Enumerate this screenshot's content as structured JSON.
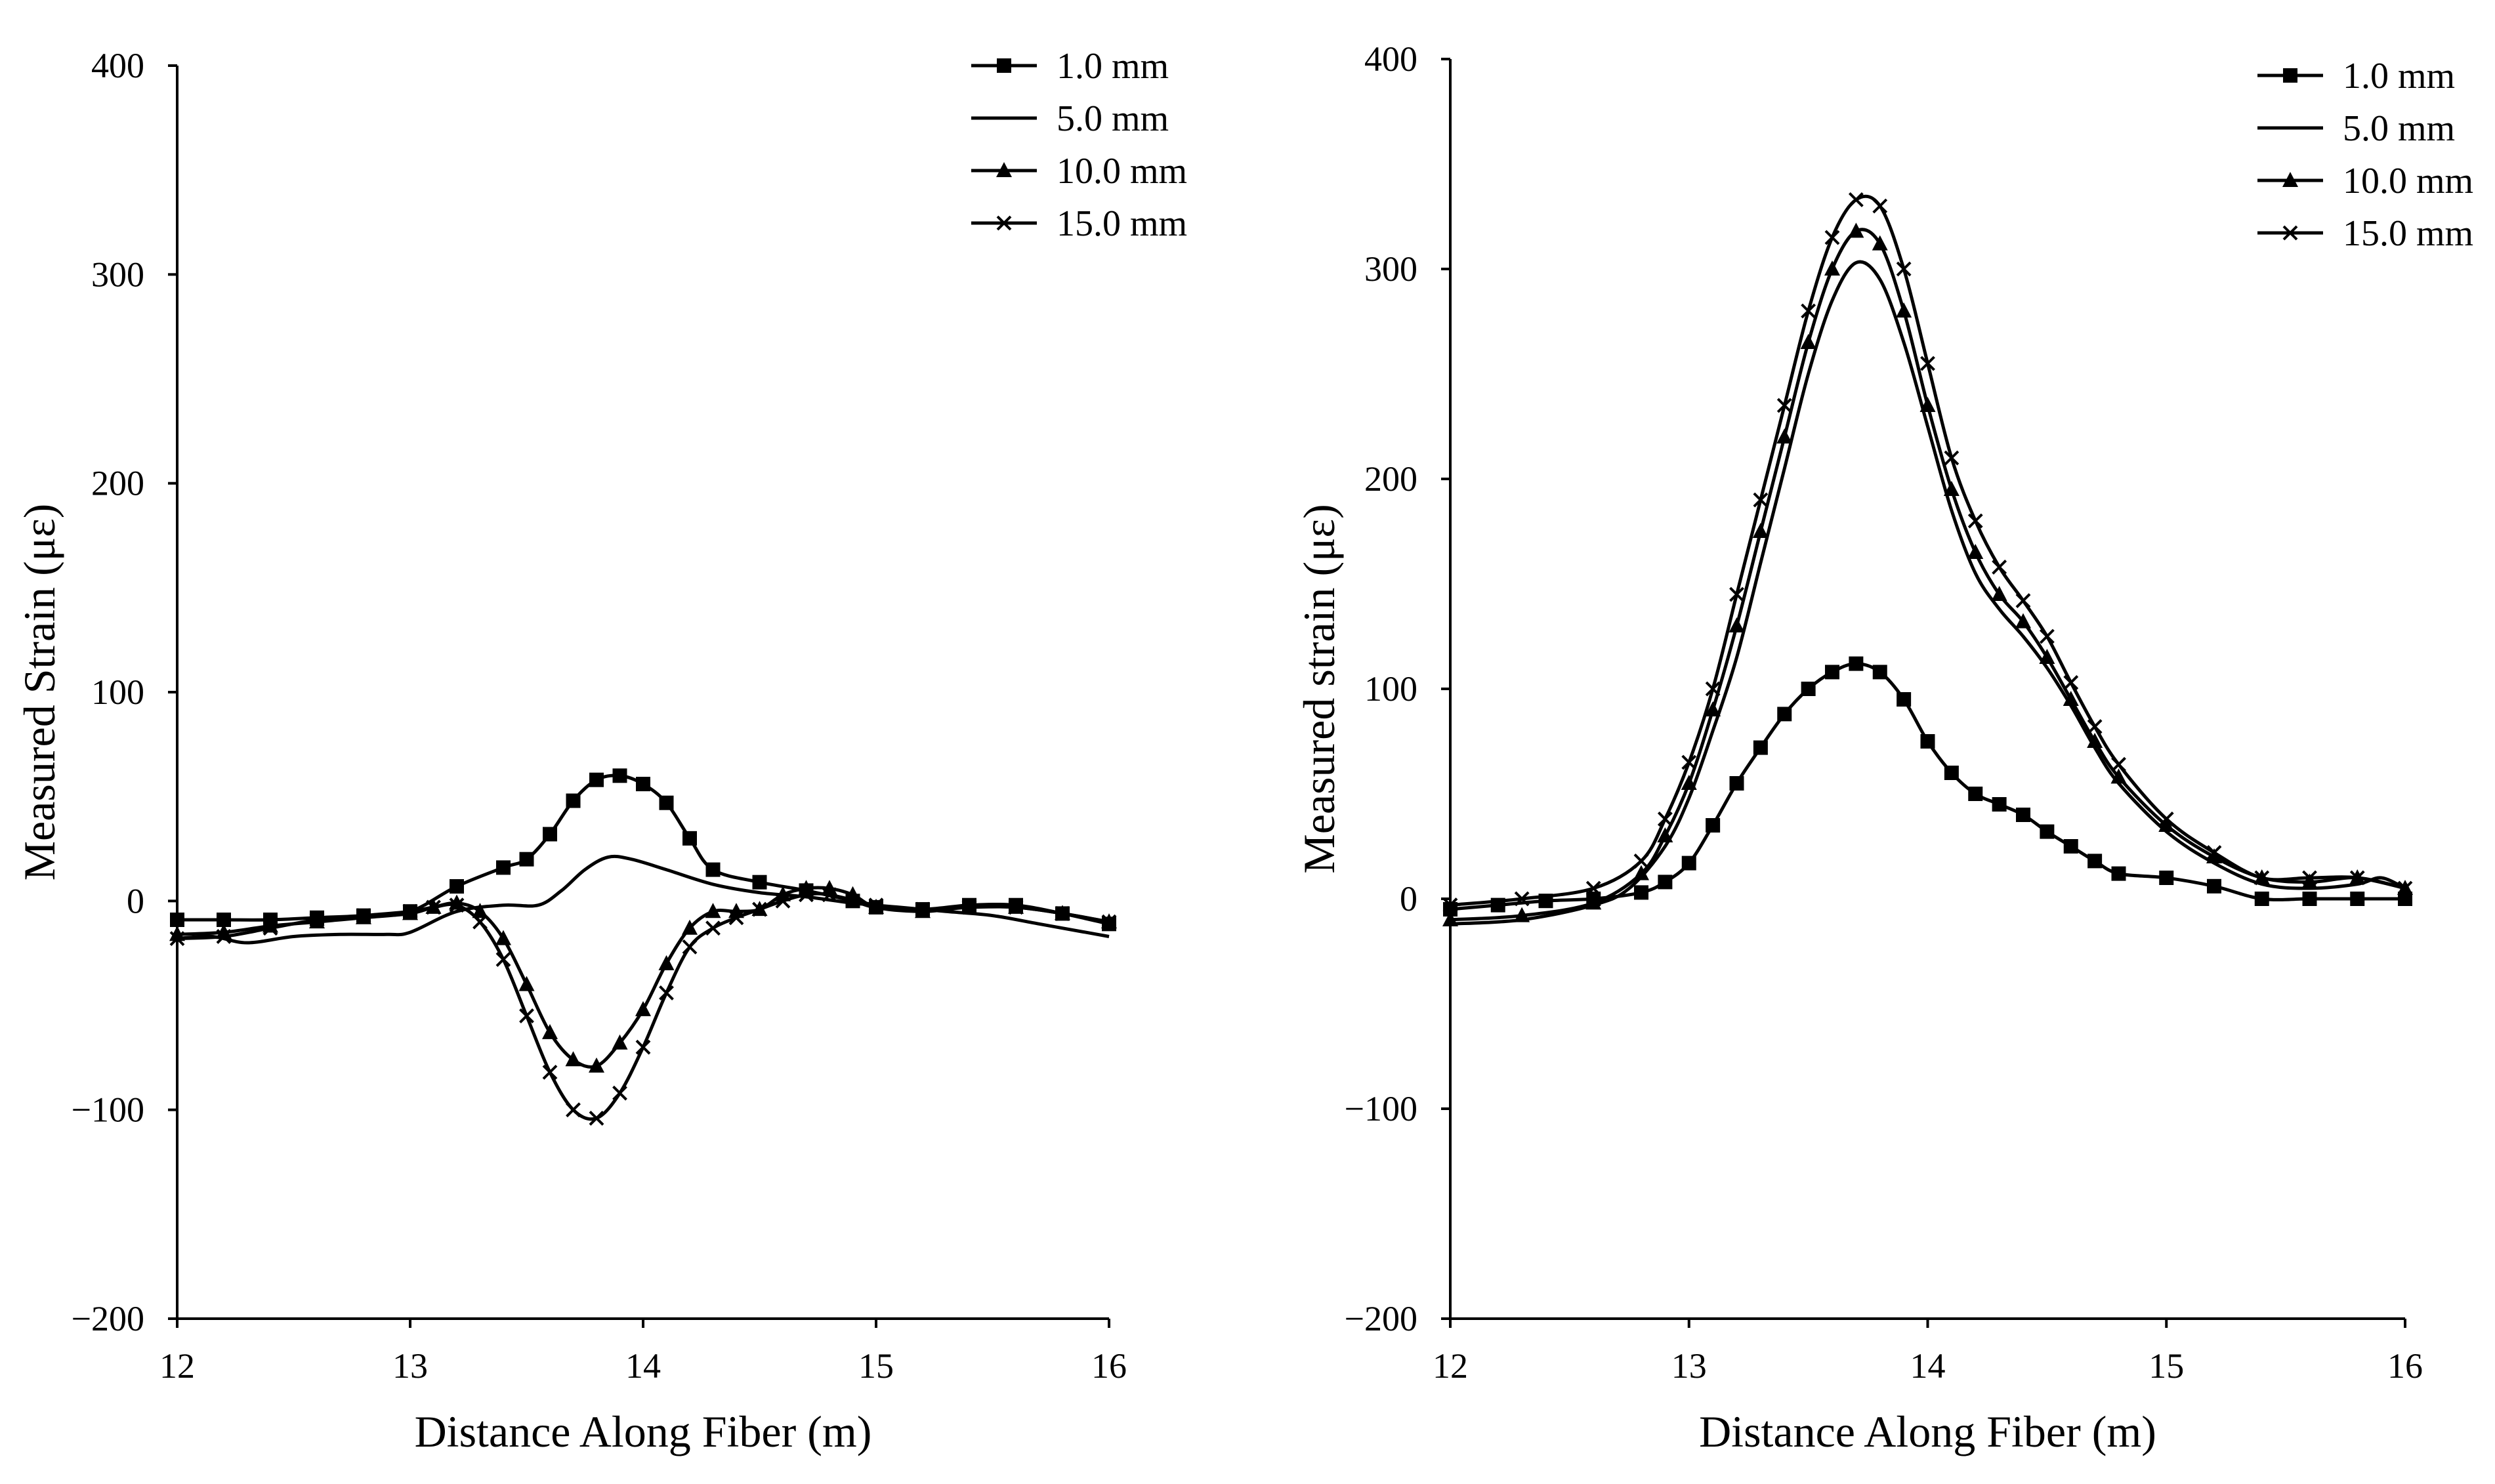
{
  "chart_data": [
    {
      "type": "line",
      "xlabel": "Distance Along Fiber (m)",
      "ylabel": "Measured Strain (με)",
      "xlim": [
        12,
        16
      ],
      "ylim": [
        -200,
        400
      ],
      "xticks": [
        12,
        13,
        14,
        15,
        16
      ],
      "yticks": [
        -200,
        -100,
        0,
        100,
        200,
        300,
        400
      ],
      "xtick_labels": [
        "12",
        "13",
        "14",
        "15",
        "16"
      ],
      "ytick_labels": [
        "−200",
        "−100",
        "0",
        "100",
        "200",
        "300",
        "400"
      ],
      "grid": false,
      "legend_position": "top-right",
      "series": [
        {
          "name": "1.0 mm",
          "marker": "square",
          "x": [
            12.0,
            12.2,
            12.4,
            12.6,
            12.8,
            13.0,
            13.2,
            13.4,
            13.5,
            13.6,
            13.7,
            13.8,
            13.9,
            14.0,
            14.1,
            14.2,
            14.3,
            14.5,
            14.7,
            14.9,
            15.0,
            15.2,
            15.4,
            15.6,
            15.8,
            16.0
          ],
          "y": [
            -9,
            -9,
            -9,
            -8,
            -7,
            -5,
            7,
            16,
            20,
            32,
            48,
            58,
            60,
            56,
            47,
            30,
            15,
            9,
            5,
            0,
            -3,
            -4,
            -2,
            -2,
            -6,
            -11
          ]
        },
        {
          "name": "5.0 mm",
          "marker": "none",
          "x": [
            12.0,
            12.15,
            12.3,
            12.5,
            12.7,
            12.9,
            13.0,
            13.2,
            13.4,
            13.55,
            13.65,
            13.75,
            13.85,
            13.95,
            14.1,
            14.3,
            14.5,
            14.7,
            14.9,
            15.1,
            15.3,
            15.5,
            15.7,
            15.9,
            16.0
          ],
          "y": [
            -18,
            -17,
            -20,
            -17,
            -16,
            -16,
            -15,
            -5,
            -2,
            -2,
            5,
            15,
            21,
            20,
            15,
            8,
            4,
            2,
            -1,
            -3,
            -5,
            -7,
            -11,
            -15,
            -17
          ]
        },
        {
          "name": "10.0 mm",
          "marker": "triangle",
          "x": [
            12.0,
            12.2,
            12.4,
            12.6,
            12.8,
            13.0,
            13.1,
            13.2,
            13.3,
            13.4,
            13.5,
            13.6,
            13.7,
            13.8,
            13.9,
            14.0,
            14.1,
            14.2,
            14.3,
            14.4,
            14.5,
            14.6,
            14.7,
            14.8,
            14.9,
            15.0,
            15.2,
            15.4,
            15.6,
            15.8,
            16.0
          ],
          "y": [
            -16,
            -15,
            -12,
            -10,
            -8,
            -6,
            -3,
            -1,
            -5,
            -18,
            -40,
            -63,
            -76,
            -79,
            -68,
            -52,
            -30,
            -13,
            -5,
            -5,
            -4,
            3,
            6,
            6,
            3,
            -3,
            -5,
            -3,
            -3,
            -6,
            -10
          ]
        },
        {
          "name": "15.0 mm",
          "marker": "x",
          "x": [
            12.0,
            12.2,
            12.4,
            12.6,
            12.8,
            13.0,
            13.1,
            13.2,
            13.3,
            13.4,
            13.5,
            13.6,
            13.7,
            13.8,
            13.9,
            14.0,
            14.1,
            14.2,
            14.3,
            14.4,
            14.5,
            14.6,
            14.7,
            14.8,
            15.0,
            15.2,
            15.4,
            15.6,
            15.8,
            16.0
          ],
          "y": [
            -18,
            -17,
            -13,
            -9,
            -7,
            -5,
            -3,
            -2,
            -10,
            -28,
            -55,
            -82,
            -100,
            -104,
            -92,
            -70,
            -44,
            -22,
            -13,
            -8,
            -4,
            0,
            3,
            3,
            -2,
            -4,
            -3,
            -3,
            -6,
            -10
          ]
        }
      ]
    },
    {
      "type": "line",
      "xlabel": "Distance Along Fiber (m)",
      "ylabel": "Measured strain (με)",
      "xlim": [
        12,
        16
      ],
      "ylim": [
        -200,
        400
      ],
      "xticks": [
        12,
        13,
        14,
        15,
        16
      ],
      "yticks": [
        -200,
        -100,
        0,
        100,
        200,
        300,
        400
      ],
      "xtick_labels": [
        "12",
        "13",
        "14",
        "15",
        "16"
      ],
      "ytick_labels": [
        "−200",
        "−100",
        "0",
        "100",
        "200",
        "300",
        "400"
      ],
      "grid": false,
      "legend_position": "top-right",
      "series": [
        {
          "name": "1.0 mm",
          "marker": "square",
          "x": [
            12.0,
            12.2,
            12.4,
            12.6,
            12.8,
            12.9,
            13.0,
            13.1,
            13.2,
            13.3,
            13.4,
            13.5,
            13.6,
            13.7,
            13.8,
            13.9,
            14.0,
            14.1,
            14.2,
            14.3,
            14.4,
            14.5,
            14.6,
            14.7,
            14.8,
            15.0,
            15.2,
            15.4,
            15.6,
            15.8,
            16.0
          ],
          "y": [
            -5,
            -3,
            -1,
            0,
            3,
            8,
            17,
            35,
            55,
            72,
            88,
            100,
            108,
            112,
            108,
            95,
            75,
            60,
            50,
            45,
            40,
            32,
            25,
            18,
            12,
            10,
            6,
            0,
            0,
            0,
            0
          ]
        },
        {
          "name": "5.0 mm",
          "marker": "none",
          "x": [
            12.0,
            12.3,
            12.6,
            12.75,
            12.9,
            13.0,
            13.1,
            13.2,
            13.3,
            13.4,
            13.5,
            13.6,
            13.7,
            13.8,
            13.9,
            14.0,
            14.1,
            14.2,
            14.3,
            14.4,
            14.5,
            14.6,
            14.7,
            14.8,
            15.0,
            15.2,
            15.4,
            15.6,
            15.8,
            15.9,
            16.0
          ],
          "y": [
            -12,
            -10,
            -3,
            5,
            25,
            48,
            80,
            115,
            160,
            205,
            250,
            285,
            303,
            295,
            265,
            225,
            185,
            155,
            138,
            125,
            110,
            92,
            72,
            55,
            32,
            17,
            7,
            5,
            7,
            10,
            5
          ]
        },
        {
          "name": "10.0 mm",
          "marker": "triangle",
          "x": [
            12.0,
            12.3,
            12.6,
            12.8,
            12.9,
            13.0,
            13.1,
            13.2,
            13.3,
            13.4,
            13.5,
            13.6,
            13.7,
            13.8,
            13.9,
            14.0,
            14.1,
            14.2,
            14.3,
            14.4,
            14.5,
            14.6,
            14.7,
            14.8,
            15.0,
            15.2,
            15.4,
            15.6,
            15.8,
            16.0
          ],
          "y": [
            -10,
            -8,
            -2,
            12,
            30,
            55,
            90,
            130,
            175,
            220,
            265,
            300,
            318,
            312,
            280,
            235,
            195,
            165,
            145,
            132,
            115,
            95,
            75,
            58,
            35,
            20,
            10,
            8,
            10,
            5
          ]
        },
        {
          "name": "15.0 mm",
          "marker": "x",
          "x": [
            12.0,
            12.3,
            12.6,
            12.8,
            12.9,
            13.0,
            13.1,
            13.2,
            13.3,
            13.4,
            13.5,
            13.6,
            13.7,
            13.8,
            13.9,
            14.0,
            14.1,
            14.2,
            14.3,
            14.4,
            14.5,
            14.6,
            14.7,
            14.8,
            15.0,
            15.2,
            15.4,
            15.6,
            15.8,
            16.0
          ],
          "y": [
            -3,
            0,
            5,
            18,
            38,
            65,
            100,
            145,
            190,
            235,
            280,
            315,
            333,
            330,
            300,
            255,
            210,
            180,
            158,
            142,
            125,
            103,
            82,
            64,
            38,
            22,
            10,
            10,
            10,
            5
          ]
        }
      ]
    }
  ]
}
